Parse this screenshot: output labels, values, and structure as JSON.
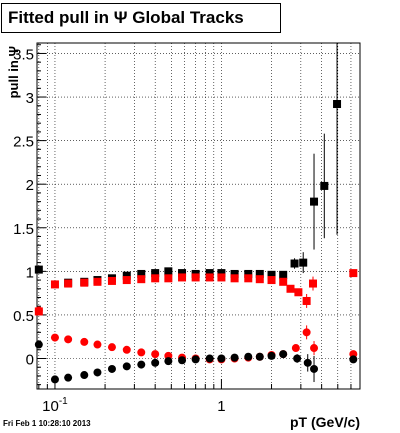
{
  "title": "Fitted pull in Ψ   Global Tracks",
  "timestamp": "Fri Feb  1 10:28:10 2013",
  "colors": {
    "black_series": "#000000",
    "red_series": "#ff0000",
    "grid": "#000000"
  },
  "chart_data": {
    "type": "scatter",
    "title": "Fitted pull in Ψ   Global Tracks",
    "xlabel": "pT (GeV/c)",
    "ylabel": "pull in Ψ",
    "xscale": "log",
    "xlim": [
      0.078,
      6.8
    ],
    "ylim": [
      -0.35,
      3.62
    ],
    "grid": true,
    "x_ticks": [
      {
        "value": 0.1,
        "base": "10",
        "exp": "-1"
      },
      {
        "value": 1,
        "label": "1"
      }
    ],
    "y_ticks": [
      {
        "value": 0,
        "label": "0"
      },
      {
        "value": 0.5,
        "label": "0.5"
      },
      {
        "value": 1,
        "label": "1"
      },
      {
        "value": 1.5,
        "label": "1.5"
      },
      {
        "value": 2,
        "label": "2"
      },
      {
        "value": 2.5,
        "label": "2.5"
      },
      {
        "value": 3,
        "label": "3"
      },
      {
        "value": 3.5,
        "label": "3.5"
      }
    ],
    "series": [
      {
        "marker": "square",
        "color": "#000000",
        "points": [
          [
            0.08,
            1.02,
            0.02
          ],
          [
            0.12,
            0.87,
            0.01
          ],
          [
            0.15,
            0.88,
            0.01
          ],
          [
            0.18,
            0.9,
            0.01
          ],
          [
            0.22,
            0.92,
            0.01
          ],
          [
            0.27,
            0.95,
            0.01
          ],
          [
            0.33,
            0.97,
            0.01
          ],
          [
            0.4,
            0.98,
            0.01
          ],
          [
            0.48,
            1.0,
            0.01
          ],
          [
            0.58,
            0.98,
            0.01
          ],
          [
            0.7,
            0.97,
            0.01
          ],
          [
            0.85,
            0.98,
            0.01
          ],
          [
            1.0,
            0.98,
            0.01
          ],
          [
            1.2,
            0.97,
            0.01
          ],
          [
            1.45,
            0.97,
            0.01
          ],
          [
            1.7,
            0.97,
            0.01
          ],
          [
            2.0,
            0.96,
            0.01
          ],
          [
            2.35,
            0.96,
            0.02
          ],
          [
            2.75,
            1.09,
            0.06
          ],
          [
            3.1,
            1.1,
            0.12
          ],
          [
            3.6,
            1.8,
            0.55
          ],
          [
            4.15,
            1.98,
            0.6
          ],
          [
            4.95,
            2.92,
            1.5
          ]
        ]
      },
      {
        "marker": "square",
        "color": "#ff0000",
        "points": [
          [
            0.08,
            0.54,
            0.01
          ],
          [
            0.1,
            0.85,
            0.01
          ],
          [
            0.12,
            0.86,
            0.01
          ],
          [
            0.15,
            0.87,
            0.01
          ],
          [
            0.18,
            0.88,
            0.01
          ],
          [
            0.22,
            0.89,
            0.01
          ],
          [
            0.27,
            0.9,
            0.01
          ],
          [
            0.33,
            0.91,
            0.01
          ],
          [
            0.4,
            0.92,
            0.01
          ],
          [
            0.48,
            0.92,
            0.01
          ],
          [
            0.58,
            0.93,
            0.01
          ],
          [
            0.7,
            0.93,
            0.01
          ],
          [
            0.85,
            0.93,
            0.01
          ],
          [
            1.0,
            0.93,
            0.01
          ],
          [
            1.2,
            0.92,
            0.01
          ],
          [
            1.45,
            0.92,
            0.01
          ],
          [
            1.7,
            0.91,
            0.01
          ],
          [
            2.0,
            0.9,
            0.01
          ],
          [
            2.35,
            0.88,
            0.02
          ],
          [
            2.6,
            0.8,
            0.03
          ],
          [
            2.9,
            0.76,
            0.03
          ],
          [
            3.25,
            0.66,
            0.08
          ],
          [
            3.55,
            0.86,
            0.08
          ],
          [
            6.2,
            0.98,
            0.02
          ]
        ]
      },
      {
        "marker": "circle",
        "color": "#ff0000",
        "points": [
          [
            0.08,
            0.55,
            0.01
          ],
          [
            0.1,
            0.24,
            0.01
          ],
          [
            0.12,
            0.22,
            0.01
          ],
          [
            0.15,
            0.19,
            0.01
          ],
          [
            0.18,
            0.16,
            0.01
          ],
          [
            0.22,
            0.13,
            0.01
          ],
          [
            0.27,
            0.1,
            0.01
          ],
          [
            0.33,
            0.07,
            0.01
          ],
          [
            0.4,
            0.05,
            0.01
          ],
          [
            0.48,
            0.03,
            0.01
          ],
          [
            0.58,
            0.01,
            0.01
          ],
          [
            0.7,
            0.0,
            0.01
          ],
          [
            0.85,
            -0.01,
            0.01
          ],
          [
            1.0,
            -0.01,
            0.01
          ],
          [
            1.2,
            0.0,
            0.01
          ],
          [
            1.45,
            0.01,
            0.01
          ],
          [
            1.7,
            0.02,
            0.01
          ],
          [
            2.0,
            0.04,
            0.01
          ],
          [
            2.35,
            0.05,
            0.02
          ],
          [
            2.8,
            0.12,
            0.04
          ],
          [
            3.25,
            0.3,
            0.08
          ],
          [
            3.6,
            0.12,
            0.08
          ],
          [
            6.2,
            0.05,
            0.02
          ]
        ]
      },
      {
        "marker": "circle",
        "color": "#000000",
        "points": [
          [
            0.08,
            0.16,
            0.01
          ],
          [
            0.1,
            -0.24,
            0.01
          ],
          [
            0.12,
            -0.22,
            0.01
          ],
          [
            0.15,
            -0.19,
            0.01
          ],
          [
            0.18,
            -0.16,
            0.01
          ],
          [
            0.22,
            -0.12,
            0.01
          ],
          [
            0.27,
            -0.09,
            0.01
          ],
          [
            0.33,
            -0.07,
            0.01
          ],
          [
            0.4,
            -0.05,
            0.01
          ],
          [
            0.48,
            -0.03,
            0.01
          ],
          [
            0.58,
            -0.02,
            0.01
          ],
          [
            0.7,
            -0.01,
            0.01
          ],
          [
            0.85,
            0.0,
            0.01
          ],
          [
            1.0,
            0.0,
            0.01
          ],
          [
            1.2,
            0.01,
            0.01
          ],
          [
            1.45,
            0.02,
            0.01
          ],
          [
            1.7,
            0.02,
            0.01
          ],
          [
            2.0,
            0.03,
            0.01
          ],
          [
            2.35,
            0.05,
            0.02
          ],
          [
            2.85,
            0.0,
            0.05
          ],
          [
            3.3,
            -0.05,
            0.1
          ],
          [
            3.6,
            -0.12,
            0.15
          ],
          [
            6.2,
            -0.01,
            0.02
          ]
        ]
      }
    ]
  }
}
